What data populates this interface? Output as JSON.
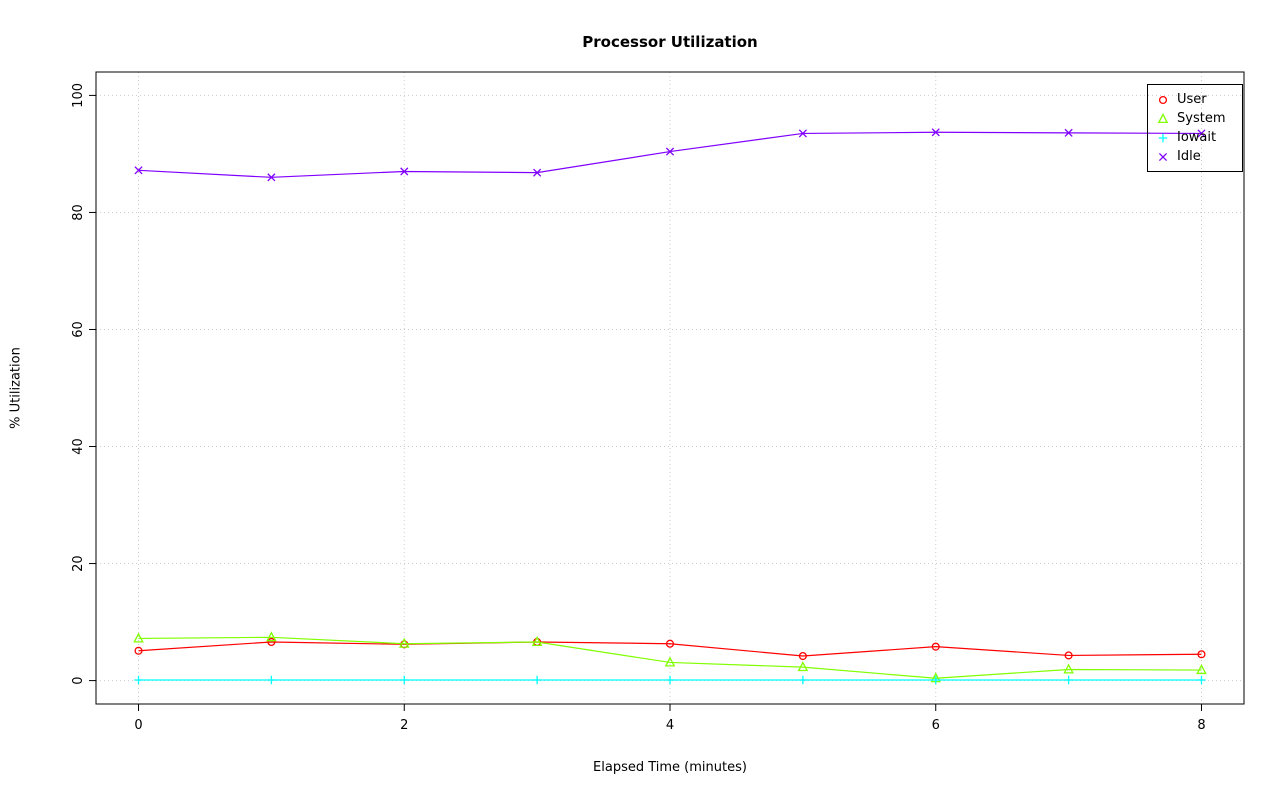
{
  "chart_data": {
    "type": "line",
    "title": "Processor Utilization",
    "xlabel": "Elapsed Time (minutes)",
    "ylabel": "% Utilization",
    "x": [
      0,
      1,
      2,
      3,
      4,
      5,
      6,
      7,
      8
    ],
    "xlim": [
      0,
      8
    ],
    "ylim": [
      0,
      100
    ],
    "xticks": [
      0,
      2,
      4,
      6,
      8
    ],
    "yticks": [
      0,
      20,
      40,
      60,
      80,
      100
    ],
    "grid": true,
    "grid_style": "dotted",
    "grid_color": "#CCCCCC",
    "axis_color": "#000000",
    "background": "#FFFFFF",
    "legend_position": "top-right",
    "series": [
      {
        "name": "User",
        "color": "#FF0000",
        "marker": "circle",
        "values": [
          5.1,
          6.6,
          6.2,
          6.6,
          6.3,
          4.2,
          5.8,
          4.3,
          4.5
        ]
      },
      {
        "name": "System",
        "color": "#80FF00",
        "marker": "triangle",
        "values": [
          7.2,
          7.4,
          6.3,
          6.6,
          3.1,
          2.3,
          0.4,
          1.9,
          1.8
        ]
      },
      {
        "name": "Iowait",
        "color": "#00FFFF",
        "marker": "plus",
        "values": [
          0.1,
          0.1,
          0.1,
          0.1,
          0.1,
          0.1,
          0.1,
          0.1,
          0.1
        ]
      },
      {
        "name": "Idle",
        "color": "#8000FF",
        "marker": "x",
        "values": [
          87.2,
          86.0,
          87.0,
          86.8,
          90.4,
          93.5,
          93.7,
          93.6,
          93.5
        ]
      }
    ]
  }
}
